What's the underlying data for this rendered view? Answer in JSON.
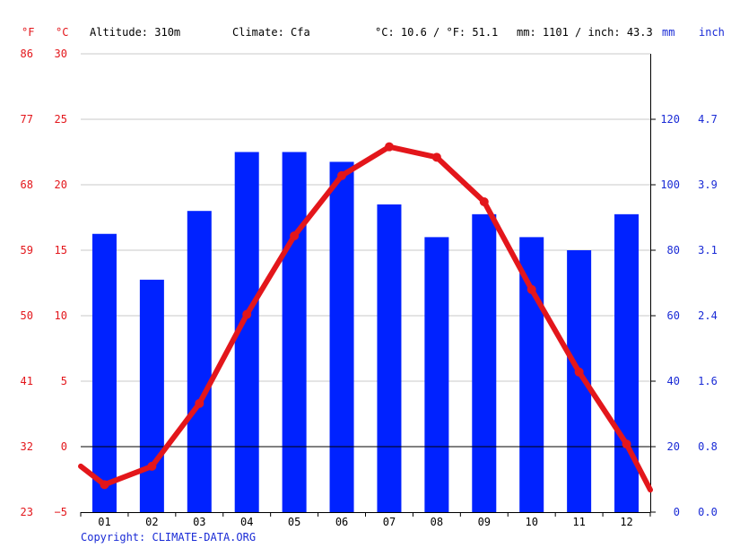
{
  "header": {
    "unit_f": "°F",
    "unit_c": "°C",
    "altitude": "Altitude: 310m",
    "climate": "Climate: Cfa",
    "temp_avg": "°C: 10.6 / °F: 51.1",
    "precip_total": "mm: 1101 / inch: 43.3",
    "unit_mm": "mm",
    "unit_inch": "inch"
  },
  "copyright": "Copyright: CLIMATE-DATA.ORG",
  "colors": {
    "temperature": "#e3161b",
    "precipitation": "#0022ff",
    "grid": "#c8c8c8",
    "zero_line": "#000000"
  },
  "chart_data": {
    "type": "bar",
    "categories": [
      "01",
      "02",
      "03",
      "04",
      "05",
      "06",
      "07",
      "08",
      "09",
      "10",
      "11",
      "12"
    ],
    "series": [
      {
        "values": [
          85,
          71,
          92,
          110,
          110,
          107,
          94,
          84,
          91,
          84,
          80,
          91
        ],
        "axis": "right",
        "mark": "bar"
      },
      {
        "values": [
          -2.9,
          -1.5,
          3.3,
          10.1,
          16.1,
          20.7,
          22.9,
          22.1,
          18.7,
          12.0,
          5.7,
          0.2
        ],
        "axis": "left",
        "mark": "line"
      }
    ],
    "temp_edge": {
      "start": -1.5,
      "end": -3.3
    },
    "y_left_c": {
      "ticks": [
        30,
        25,
        20,
        15,
        10,
        5,
        0,
        -5
      ],
      "labels": [
        "30",
        "25",
        "20",
        "15",
        "10",
        "5",
        "0",
        "−5"
      ],
      "ylim": [
        -5,
        30
      ]
    },
    "y_left_f": {
      "labels": [
        "86",
        "77",
        "68",
        "59",
        "50",
        "41",
        "32",
        "23"
      ]
    },
    "y_right_mm": {
      "ticks": [
        0,
        20,
        40,
        60,
        80,
        100,
        120
      ],
      "labels": [
        "0",
        "20",
        "40",
        "60",
        "80",
        "100",
        "120"
      ],
      "ylim": [
        0,
        140
      ]
    },
    "y_right_inch": {
      "labels": [
        "0.0",
        "0.8",
        "1.6",
        "2.4",
        "3.1",
        "3.9",
        "4.7"
      ]
    },
    "grid": true
  }
}
